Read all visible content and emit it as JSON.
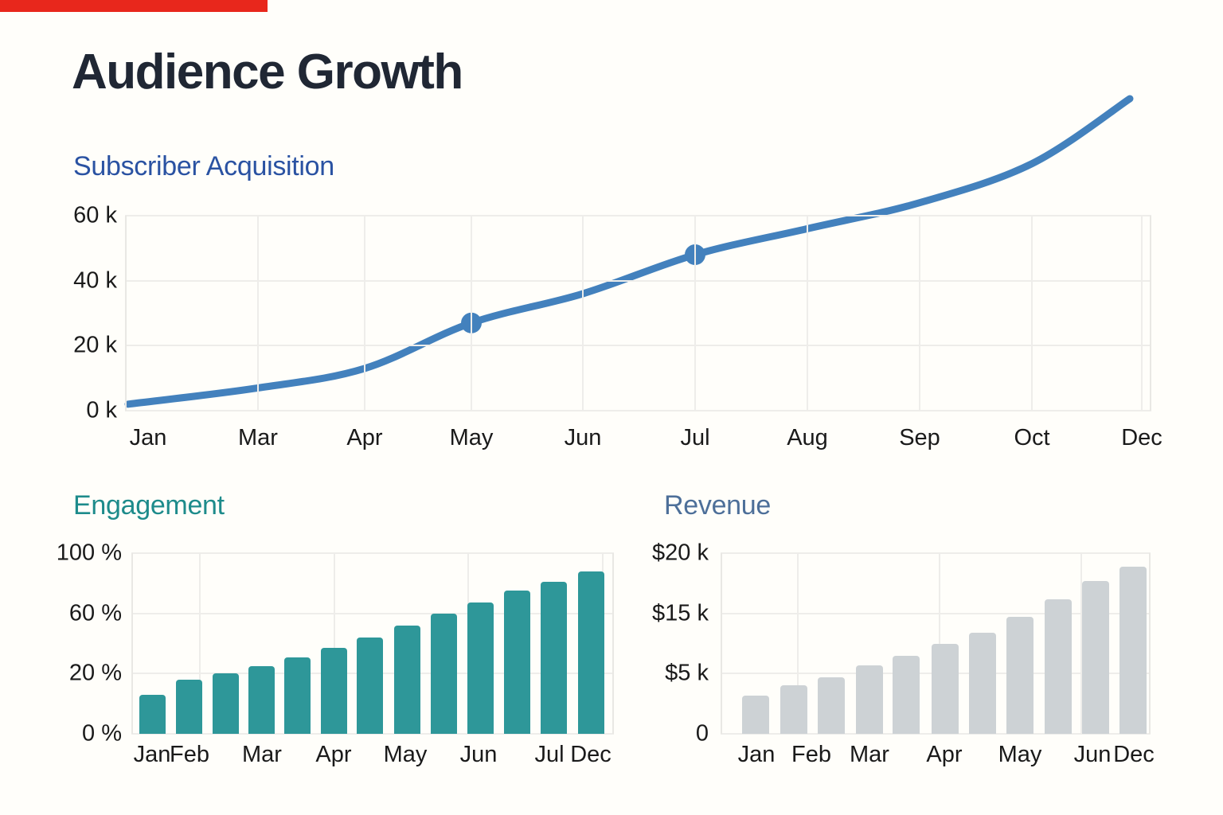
{
  "page": {
    "title": "Audience Growth",
    "title_color": "#202734",
    "background": "#fffefa",
    "accent_bar_color": "#e8271c",
    "tick_color": "#1a1a1a",
    "gridline_color": "#eeedea"
  },
  "chart_data": [
    {
      "type": "line",
      "title": "Subscriber Acquisition",
      "title_color": "#2a52a2",
      "line_color": "#4381bd",
      "categories": [
        "Jan",
        "Mar",
        "Apr",
        "May",
        "Jun",
        "Jul",
        "Aug",
        "Sep",
        "Oct",
        "Dec"
      ],
      "values_thousands": [
        2,
        7,
        13,
        27,
        36,
        48,
        56,
        64,
        76,
        96
      ],
      "marker_indices": [
        3,
        5
      ],
      "marker_values_thousands": [
        27,
        48
      ],
      "y_tick_labels": [
        "60 k",
        "40 k",
        "20 k",
        "0 k"
      ],
      "y_tick_values_thousands": [
        60,
        40,
        20,
        0
      ],
      "ylim_thousands": [
        0,
        60
      ],
      "grid": true,
      "legend": "none",
      "note": "line rises beyond the 60k top gridline toward ~96k at Dec"
    },
    {
      "type": "bar",
      "title": "Engagement",
      "title_color": "#1d8b8b",
      "bar_color": "#2e9799",
      "bar_count": 13,
      "values_percent": [
        13,
        18,
        20,
        25,
        31,
        37,
        44,
        52,
        60,
        67,
        75,
        81,
        88
      ],
      "x_tick_labels": [
        "Jan",
        "Feb",
        "Mar",
        "Apr",
        "May",
        "Jun",
        "Jul",
        "Dec"
      ],
      "y_tick_labels": [
        "100 %",
        "60 %",
        "20 %",
        "0 %"
      ],
      "y_tick_values_percent": [
        100,
        60,
        20,
        0
      ],
      "grid": true,
      "legend": "none"
    },
    {
      "type": "bar",
      "title": "Revenue",
      "title_color": "#4d6f99",
      "bar_color": "#cdd2d5",
      "bar_count": 11,
      "values_thousands_usd": [
        3.2,
        4,
        4.7,
        6.4,
        8,
        9.9,
        11.8,
        14.4,
        16.2,
        17.7,
        18.9
      ],
      "x_tick_labels": [
        "Jan",
        "Feb",
        "Mar",
        "Apr",
        "May",
        "Jun",
        "Dec"
      ],
      "y_tick_labels": [
        "$20 k",
        "$15 k",
        "$5 k",
        "0"
      ],
      "y_tick_values_thousands_usd": [
        20,
        15,
        5,
        0
      ],
      "grid": true,
      "legend": "none"
    }
  ]
}
